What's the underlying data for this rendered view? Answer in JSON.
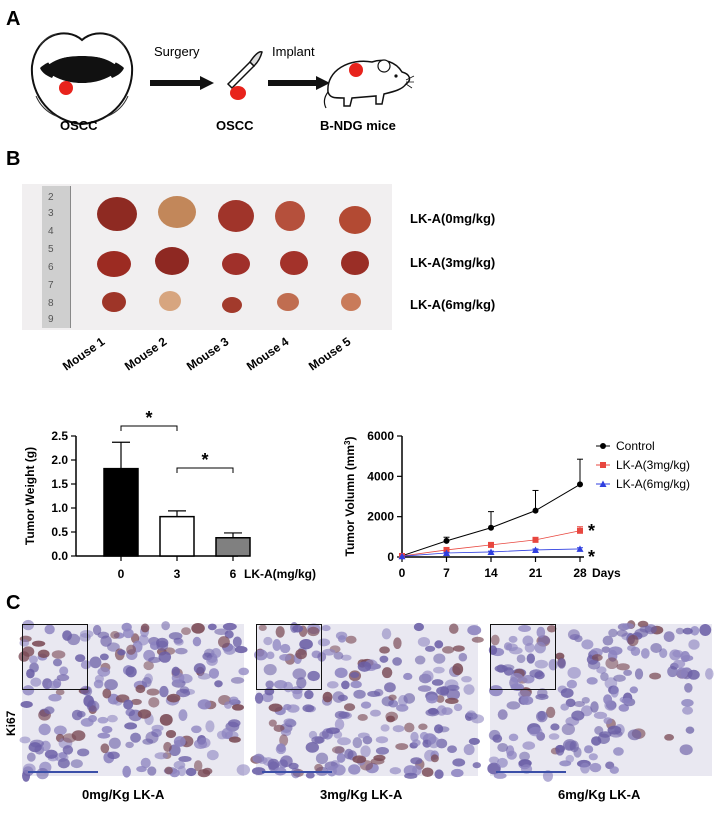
{
  "panel_a": {
    "letter": "A",
    "oscc_label": "OSCC",
    "surgery_label": "Surgery",
    "oscc_label_2": "OSCC",
    "implant_label": "Implant",
    "mice_label": "B-NDG mice"
  },
  "panel_b": {
    "letter": "B",
    "row_labels": [
      "LK-A(0mg/kg)",
      "LK-A(3mg/kg)",
      "LK-A(6mg/kg)"
    ],
    "mouse_labels": [
      "Mouse 1",
      "Mouse 2",
      "Mouse 3",
      "Mouse 4",
      "Mouse 5"
    ],
    "ruler_ticks": [
      "2",
      "3",
      "4",
      "5",
      "6",
      "7",
      "8",
      "9"
    ]
  },
  "panel_c": {
    "letter": "C",
    "row_label": "Ki67",
    "captions": [
      "0mg/Kg LK-A",
      "3mg/Kg LK-A",
      "6mg/Kg LK-A"
    ]
  },
  "colors": {
    "bar_0": "#000000",
    "bar_3": "#ffffff",
    "bar_6": "#808080",
    "control": "#000000",
    "lka3": "#e8473f",
    "lka6": "#2f3fe0",
    "tumor_red": "#e8231c"
  },
  "chart_data": [
    {
      "type": "bar",
      "ylabel": "Tumor Weight (g)",
      "xlabel": "LK-A(mg/kg)",
      "categories": [
        "0",
        "3",
        "6"
      ],
      "values": [
        1.82,
        0.82,
        0.38
      ],
      "errors": [
        0.55,
        0.12,
        0.1
      ],
      "ylim": [
        0,
        2.5
      ],
      "yticks": [
        "0.0",
        "0.5",
        "1.0",
        "1.5",
        "2.0",
        "2.5"
      ],
      "significance": [
        "*",
        "*"
      ]
    },
    {
      "type": "line",
      "ylabel": "Tumor Volumn (mm",
      "ylabel_sup": "3",
      "ylabel_close": ")",
      "xlabel": "Days",
      "x": [
        0,
        7,
        14,
        21,
        28
      ],
      "xticks": [
        "0",
        "7",
        "14",
        "21",
        "28"
      ],
      "ylim": [
        0,
        6000
      ],
      "yticks": [
        "0",
        "2000",
        "4000",
        "6000"
      ],
      "legend_position": "top-right",
      "significance": [
        "*",
        "*"
      ],
      "series": [
        {
          "name": "Control",
          "values": [
            60,
            800,
            1450,
            2300,
            3600
          ],
          "errors": [
            0,
            180,
            800,
            1000,
            1250
          ],
          "marker": "circle"
        },
        {
          "name": "LK-A(3mg/kg)",
          "values": [
            50,
            350,
            600,
            850,
            1300
          ],
          "errors": [
            0,
            60,
            100,
            120,
            200
          ],
          "marker": "square"
        },
        {
          "name": "LK-A(6mg/kg)",
          "values": [
            40,
            200,
            250,
            350,
            400
          ],
          "errors": [
            0,
            30,
            40,
            50,
            60
          ],
          "marker": "triangle"
        }
      ]
    }
  ]
}
